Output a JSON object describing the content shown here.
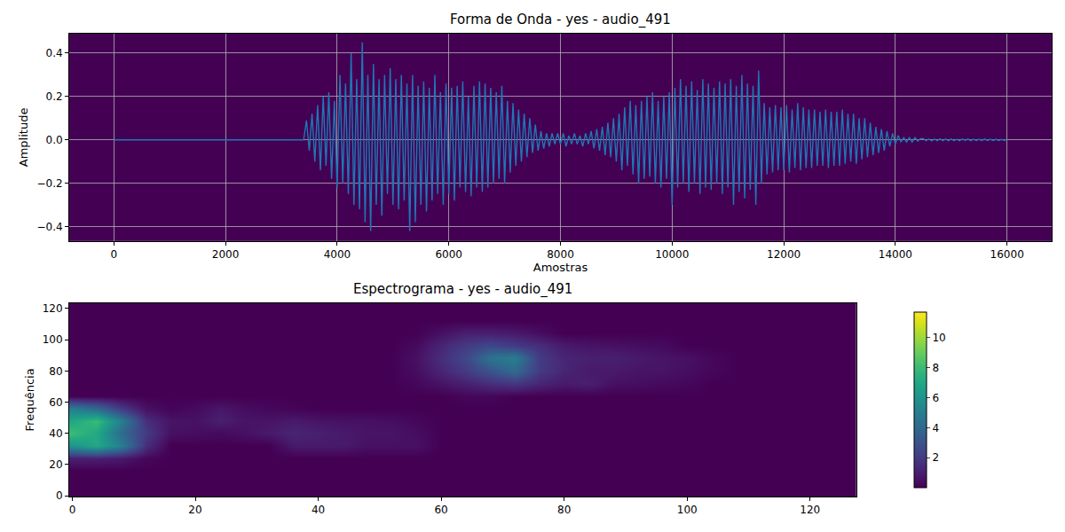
{
  "chart_data": [
    {
      "type": "line",
      "title": "Forma de Onda - yes - audio_491",
      "x_label": "Amostras",
      "y_label": "Amplitude",
      "color": "#1f77b4",
      "grid": true,
      "xlim": [
        -800,
        16800
      ],
      "ylim": [
        -0.467,
        0.49
      ],
      "xticks": [
        0,
        2000,
        4000,
        6000,
        8000,
        10000,
        12000,
        14000,
        16000
      ],
      "yticks": [
        {
          "value": -0.4,
          "label": "−0.4"
        },
        {
          "value": -0.2,
          "label": "−0.2"
        },
        {
          "value": 0,
          "label": "0.0"
        },
        {
          "value": 0.2,
          "label": "0.2"
        },
        {
          "value": 0.4,
          "label": "0.4"
        }
      ],
      "x": [
        0,
        50,
        100,
        150,
        200,
        250,
        300,
        350,
        400,
        450,
        500,
        550,
        600,
        650,
        700,
        750,
        800,
        850,
        900,
        950,
        1000,
        1050,
        1100,
        1150,
        1200,
        1250,
        1300,
        1350,
        1400,
        1450,
        1500,
        1550,
        1600,
        1650,
        1700,
        1750,
        1800,
        1850,
        1900,
        1950,
        2000,
        2050,
        2100,
        2150,
        2200,
        2250,
        2300,
        2350,
        2400,
        2450,
        2500,
        2550,
        2600,
        2650,
        2700,
        2750,
        2800,
        2850,
        2900,
        2950,
        3000,
        3050,
        3100,
        3150,
        3200,
        3250,
        3300,
        3350,
        3400,
        3450,
        3500,
        3550,
        3600,
        3650,
        3700,
        3750,
        3800,
        3850,
        3900,
        3950,
        4000,
        4050,
        4100,
        4150,
        4200,
        4250,
        4300,
        4350,
        4400,
        4450,
        4500,
        4550,
        4600,
        4650,
        4700,
        4750,
        4800,
        4850,
        4900,
        4950,
        5000,
        5050,
        5100,
        5150,
        5200,
        5250,
        5300,
        5350,
        5400,
        5450,
        5500,
        5550,
        5600,
        5650,
        5700,
        5750,
        5800,
        5850,
        5900,
        5950,
        6000,
        6050,
        6100,
        6150,
        6200,
        6250,
        6300,
        6350,
        6400,
        6450,
        6500,
        6550,
        6600,
        6650,
        6700,
        6750,
        6800,
        6850,
        6900,
        6950,
        7000,
        7050,
        7100,
        7150,
        7200,
        7250,
        7300,
        7350,
        7400,
        7450,
        7500,
        7550,
        7600,
        7650,
        7700,
        7750,
        7800,
        7850,
        7900,
        7950,
        8000,
        8050,
        8100,
        8150,
        8200,
        8250,
        8300,
        8350,
        8400,
        8450,
        8500,
        8550,
        8600,
        8650,
        8700,
        8750,
        8800,
        8850,
        8900,
        8950,
        9000,
        9050,
        9100,
        9150,
        9200,
        9250,
        9300,
        9350,
        9400,
        9450,
        9500,
        9550,
        9600,
        9650,
        9700,
        9750,
        9800,
        9850,
        9900,
        9950,
        10000,
        10050,
        10100,
        10150,
        10200,
        10250,
        10300,
        10350,
        10400,
        10450,
        10500,
        10550,
        10600,
        10650,
        10700,
        10750,
        10800,
        10850,
        10900,
        10950,
        11000,
        11050,
        11100,
        11150,
        11200,
        11250,
        11300,
        11350,
        11400,
        11450,
        11500,
        11550,
        11600,
        11650,
        11700,
        11750,
        11800,
        11850,
        11900,
        11950,
        12000,
        12050,
        12100,
        12150,
        12200,
        12250,
        12300,
        12350,
        12400,
        12450,
        12500,
        12550,
        12600,
        12650,
        12700,
        12750,
        12800,
        12850,
        12900,
        12950,
        13000,
        13050,
        13100,
        13150,
        13200,
        13250,
        13300,
        13350,
        13400,
        13450,
        13500,
        13550,
        13600,
        13650,
        13700,
        13750,
        13800,
        13850,
        13900,
        13950,
        14000,
        14050,
        14100,
        14150,
        14200,
        14250,
        14300,
        14350,
        14400,
        14450,
        14500,
        14550,
        14600,
        14650,
        14700,
        14750,
        14800,
        14850,
        14900,
        14950,
        15000,
        15050,
        15100,
        15150,
        15200,
        15250,
        15300,
        15350,
        15400,
        15450,
        15500,
        15550,
        15600,
        15650,
        15700,
        15750,
        15800,
        15850,
        15900,
        15950,
        16000
      ],
      "values": [
        0,
        0,
        0,
        0,
        0,
        0,
        0,
        0,
        0,
        0,
        0,
        0,
        0,
        0,
        0,
        0,
        0,
        0,
        0,
        0,
        0,
        0,
        0,
        0,
        0,
        0,
        0,
        0,
        0,
        0,
        0,
        0,
        0,
        0,
        0,
        0,
        0,
        0,
        0,
        0,
        0,
        0,
        0,
        0,
        0,
        0,
        0,
        0,
        0,
        0,
        0,
        0,
        0,
        0,
        0,
        0,
        0,
        0,
        0,
        0,
        0,
        0,
        0,
        0,
        0,
        0,
        0,
        0,
        0,
        0.09,
        -0.05,
        0.12,
        -0.1,
        0.16,
        -0.14,
        0.2,
        -0.12,
        0.22,
        -0.18,
        0.18,
        -0.22,
        0.3,
        -0.2,
        0.26,
        -0.25,
        0.4,
        -0.3,
        0.28,
        -0.32,
        0.45,
        -0.38,
        0.3,
        -0.42,
        0.35,
        -0.3,
        0.28,
        -0.35,
        0.3,
        -0.25,
        0.33,
        -0.3,
        0.28,
        -0.32,
        0.3,
        -0.28,
        0.26,
        -0.42,
        0.3,
        -0.38,
        0.25,
        -0.3,
        0.27,
        -0.33,
        0.24,
        -0.28,
        0.3,
        -0.25,
        0.22,
        -0.3,
        0.26,
        -0.25,
        0.24,
        -0.28,
        0.25,
        -0.22,
        0.27,
        -0.24,
        0.2,
        -0.26,
        0.25,
        -0.22,
        0.27,
        -0.24,
        0.26,
        -0.22,
        0.24,
        -0.2,
        0.22,
        -0.18,
        0.25,
        -0.2,
        0.18,
        -0.15,
        0.17,
        -0.12,
        0.14,
        -0.1,
        0.12,
        -0.08,
        0.1,
        -0.06,
        0.07,
        -0.05,
        0.04,
        -0.04,
        0.03,
        -0.03,
        0.03,
        -0.02,
        0.03,
        -0.02,
        0.03,
        -0.03,
        0.02,
        -0.02,
        0.03,
        -0.02,
        0.02,
        -0.03,
        0.03,
        -0.02,
        0.04,
        -0.04,
        0.05,
        -0.05,
        0.06,
        -0.07,
        0.08,
        -0.08,
        0.1,
        -0.1,
        0.12,
        -0.14,
        0.15,
        -0.12,
        0.18,
        -0.16,
        0.16,
        -0.2,
        0.18,
        -0.18,
        0.2,
        -0.17,
        0.22,
        -0.2,
        0.18,
        -0.22,
        0.2,
        -0.18,
        0.22,
        -0.3,
        0.24,
        -0.22,
        0.28,
        -0.2,
        0.25,
        -0.24,
        0.27,
        -0.2,
        0.23,
        -0.25,
        0.28,
        -0.22,
        0.26,
        -0.23,
        0.24,
        -0.2,
        0.27,
        -0.25,
        0.26,
        -0.22,
        0.28,
        -0.3,
        0.25,
        -0.24,
        0.3,
        -0.27,
        0.26,
        -0.23,
        0.25,
        -0.3,
        0.32,
        -0.2,
        0.17,
        -0.16,
        0.15,
        -0.15,
        0.16,
        -0.14,
        0.15,
        -0.14,
        0.16,
        -0.15,
        0.14,
        -0.13,
        0.17,
        -0.14,
        0.15,
        -0.13,
        0.14,
        -0.13,
        0.14,
        -0.12,
        0.13,
        -0.12,
        0.14,
        -0.13,
        0.13,
        -0.12,
        0.13,
        -0.12,
        0.14,
        -0.11,
        0.12,
        -0.1,
        0.12,
        -0.11,
        0.1,
        -0.09,
        0.1,
        -0.08,
        0.08,
        -0.07,
        0.06,
        -0.06,
        0.05,
        -0.05,
        0.04,
        -0.03,
        0.03,
        -0.02,
        0.02,
        -0.01,
        0.01,
        -0.01,
        0.01,
        -0.01,
        0.01,
        -0.005,
        0.005,
        0.005,
        -0.004,
        0.004,
        -0.005,
        0.004,
        -0.004,
        0.005,
        -0.004,
        0.004,
        -0.004,
        0.004,
        -0.004,
        0.003,
        -0.004,
        0.004,
        -0.003,
        0.004,
        -0.004,
        0.003,
        -0.003,
        0.003,
        -0.003,
        0.004,
        -0.003,
        0.003,
        -0.003,
        0.003,
        -0.003,
        0.002,
        -0.002,
        0
      ]
    },
    {
      "type": "heatmap",
      "title": "Espectrograma - yes - audio_491",
      "y_label": "Frequência",
      "color": "Viridis",
      "grid": false,
      "xlim": [
        -0.5,
        127.5
      ],
      "ylim": [
        -0.5,
        123.5
      ],
      "xticks": [
        0,
        20,
        40,
        60,
        80,
        100,
        120
      ],
      "yticks": [
        0,
        20,
        40,
        60,
        80,
        100,
        120
      ],
      "x": [
        0,
        4,
        8,
        12,
        16,
        20,
        24,
        28,
        32,
        36,
        40,
        44,
        48,
        52,
        56,
        60,
        64,
        68,
        72,
        76,
        80,
        84,
        88,
        92,
        96,
        100,
        104,
        108,
        112,
        116,
        120,
        124
      ],
      "y": [
        0,
        8,
        16,
        24,
        32,
        40,
        48,
        56,
        64,
        72,
        80,
        88,
        96,
        104,
        112,
        120
      ],
      "z": [
        [
          0,
          0,
          0,
          0,
          0,
          0,
          0,
          0,
          0,
          0,
          0,
          0,
          0,
          0,
          0,
          0,
          0,
          0,
          0,
          0,
          0,
          0,
          0,
          0,
          0,
          0,
          0,
          0,
          0,
          0,
          0,
          0
        ],
        [
          0,
          0,
          0,
          0,
          0,
          0,
          0,
          0,
          0,
          0,
          0,
          0,
          0,
          0,
          0,
          0,
          0,
          0,
          0,
          0,
          0,
          0,
          0,
          0,
          0,
          0,
          0,
          0,
          0,
          0,
          0,
          0
        ],
        [
          0,
          0,
          0,
          0,
          0,
          0,
          0,
          0,
          0,
          0,
          0,
          0,
          0,
          0,
          0,
          0,
          0,
          0,
          0,
          0,
          0,
          0,
          0,
          0,
          0,
          0,
          0,
          0,
          0,
          0,
          0,
          0
        ],
        [
          1,
          1,
          0.8,
          0.2,
          0,
          0,
          0,
          0,
          0,
          0,
          0,
          0,
          0,
          0,
          0,
          0,
          0,
          0,
          0,
          0,
          0,
          0,
          0,
          0,
          0,
          0,
          0,
          0,
          0,
          0,
          0,
          0
        ],
        [
          6,
          7,
          5,
          1.5,
          0,
          0,
          0,
          0,
          0,
          0.8,
          0.8,
          0.8,
          0.5,
          0.5,
          0.5,
          0,
          0,
          0,
          0,
          0,
          0,
          0,
          0,
          0,
          0,
          0,
          0,
          0,
          0,
          0,
          0,
          0
        ],
        [
          8,
          7,
          4,
          2,
          0.5,
          0.4,
          0.3,
          0.5,
          0.8,
          1.2,
          1,
          0.8,
          0.6,
          0.6,
          0.4,
          0,
          0,
          0,
          0,
          0,
          0,
          0,
          0,
          0,
          0,
          0,
          0,
          0,
          0,
          0,
          0,
          0
        ],
        [
          7,
          8,
          5,
          1.5,
          0.6,
          0.5,
          1,
          0.6,
          0.6,
          0.8,
          0.6,
          0.5,
          0.5,
          0.4,
          0.2,
          0,
          0,
          0,
          0,
          0,
          0,
          0,
          0,
          0,
          0,
          0,
          0,
          0,
          0,
          0,
          0,
          0
        ],
        [
          5,
          4,
          2,
          0.5,
          0.1,
          0.3,
          0.7,
          0.4,
          0.2,
          0.1,
          0,
          0,
          0,
          0,
          0,
          0,
          0,
          0,
          0,
          0,
          0,
          0,
          0,
          0,
          0,
          0,
          0,
          0,
          0,
          0,
          0,
          0
        ],
        [
          0,
          0,
          0,
          0,
          0,
          0,
          0,
          0,
          0,
          0,
          0,
          0,
          0,
          0,
          0,
          0,
          0.2,
          0.2,
          0,
          0,
          0,
          0,
          0,
          0,
          0,
          0,
          0,
          0,
          0,
          0,
          0,
          0
        ],
        [
          0,
          0,
          0,
          0,
          0,
          0,
          0,
          0,
          0,
          0,
          0,
          0,
          0,
          0,
          0.2,
          0.6,
          1,
          1.5,
          1.8,
          1.2,
          0.8,
          1,
          0.5,
          0.4,
          0.3,
          0.2,
          0,
          0,
          0,
          0,
          0,
          0
        ],
        [
          0,
          0,
          0,
          0,
          0,
          0,
          0,
          0,
          0,
          0,
          0,
          0,
          0,
          0,
          0.4,
          1.2,
          2,
          3,
          4,
          2,
          1.2,
          0.8,
          0.8,
          0.6,
          0.6,
          0.4,
          0.2,
          0,
          0,
          0,
          0,
          0
        ],
        [
          0,
          0,
          0,
          0,
          0,
          0,
          0,
          0,
          0,
          0,
          0,
          0,
          0,
          0,
          0.5,
          1.5,
          2.5,
          4.5,
          5,
          2,
          1.2,
          1,
          1,
          0.8,
          0.6,
          0.5,
          0.2,
          0,
          0,
          0,
          0,
          0
        ],
        [
          0,
          0,
          0,
          0,
          0,
          0,
          0,
          0,
          0,
          0,
          0,
          0,
          0,
          0,
          0.3,
          1.2,
          2,
          2.5,
          2,
          1.5,
          0.8,
          0.6,
          0.5,
          0.4,
          0.3,
          0,
          0,
          0,
          0,
          0,
          0,
          0
        ],
        [
          0,
          0,
          0,
          0,
          0,
          0,
          0,
          0,
          0,
          0,
          0,
          0,
          0,
          0,
          0,
          0.5,
          1,
          1,
          0.8,
          0.4,
          0,
          0,
          0,
          0,
          0,
          0,
          0,
          0,
          0,
          0,
          0,
          0
        ],
        [
          0,
          0,
          0,
          0,
          0,
          0,
          0,
          0,
          0,
          0,
          0,
          0,
          0,
          0,
          0,
          0,
          0,
          0,
          0,
          0,
          0,
          0,
          0,
          0,
          0,
          0,
          0,
          0,
          0,
          0,
          0,
          0
        ],
        [
          0,
          0,
          0,
          0,
          0,
          0,
          0,
          0,
          0,
          0,
          0,
          0,
          0,
          0,
          0,
          0,
          0,
          0,
          0,
          0,
          0,
          0,
          0,
          0,
          0,
          0,
          0,
          0,
          0,
          0,
          0,
          0
        ]
      ],
      "colorbar_range": [
        0,
        11.7
      ],
      "colorbar_ticks": [
        2,
        4,
        6,
        8,
        10
      ]
    }
  ]
}
